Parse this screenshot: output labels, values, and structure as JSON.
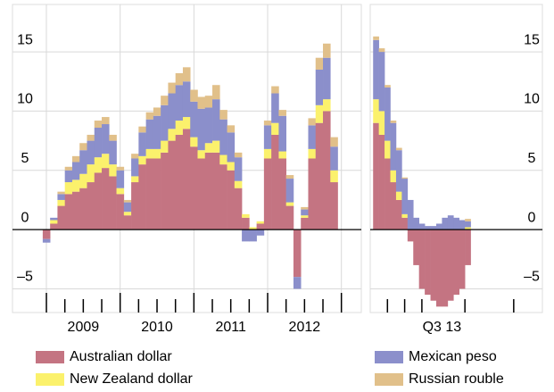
{
  "chart_data": [
    {
      "type": "bar",
      "stacked": true,
      "x": [
        2009.0,
        2009.1,
        2009.2,
        2009.3,
        2009.4,
        2009.5,
        2009.6,
        2009.7,
        2009.8,
        2009.9,
        2010.0,
        2010.1,
        2010.2,
        2010.3,
        2010.4,
        2010.5,
        2010.6,
        2010.7,
        2010.8,
        2010.9,
        2011.0,
        2011.1,
        2011.2,
        2011.3,
        2011.4,
        2011.5,
        2011.6,
        2011.7,
        2011.8,
        2011.9,
        2012.0,
        2012.1,
        2012.2,
        2012.3,
        2012.4,
        2012.5,
        2012.6,
        2012.7,
        2012.8,
        2012.9
      ],
      "series": [
        {
          "name": "Australian dollar",
          "color": "#c47482",
          "values": [
            -0.8,
            0.5,
            2,
            3,
            3.2,
            3.5,
            4,
            4.8,
            5.2,
            4.5,
            3,
            1.2,
            4,
            5.5,
            6,
            6,
            6.5,
            7.5,
            8,
            8.5,
            7,
            6,
            6.5,
            6.5,
            5.5,
            5,
            3.5,
            1,
            0,
            0.5,
            6,
            8,
            6,
            2,
            -4,
            1,
            6,
            9,
            10,
            4
          ]
        },
        {
          "name": "New Zealand dollar",
          "color": "#fbf16c",
          "values": [
            0,
            0.3,
            0.5,
            1,
            1,
            1.2,
            1.5,
            1.3,
            1.2,
            1,
            0.5,
            0.3,
            0.5,
            0.7,
            0.8,
            0.8,
            1,
            1,
            1.2,
            1,
            0.8,
            0.7,
            0.8,
            1,
            0.8,
            0.7,
            0.6,
            0.3,
            0.2,
            0.2,
            0.8,
            1,
            0.6,
            0.3,
            0,
            0.2,
            0.8,
            1.5,
            1,
            1
          ]
        },
        {
          "name": "Mexican peso",
          "color": "#8b8fcb",
          "values": [
            -0.3,
            0.2,
            0.5,
            1,
            1.5,
            2,
            2,
            2.5,
            2.5,
            2,
            1.5,
            0.8,
            1.5,
            2,
            2.5,
            2.8,
            3,
            3,
            3,
            3,
            3,
            3.5,
            3,
            3.5,
            3,
            2.5,
            2,
            -1,
            -1,
            -0.5,
            2,
            2.5,
            3,
            2,
            -1,
            0.5,
            2,
            3,
            3.5,
            2
          ]
        },
        {
          "name": "Russian rouble",
          "color": "#e1c08a",
          "values": [
            0,
            0,
            0.2,
            0.3,
            0.5,
            0.6,
            0.5,
            0.6,
            0.6,
            0.5,
            0.3,
            0.2,
            0.4,
            0.5,
            0.6,
            0.7,
            0.8,
            0.9,
            1,
            1.2,
            1,
            1,
            1,
            1.2,
            0.8,
            0.6,
            0.4,
            0,
            0,
            0,
            0.4,
            0.6,
            0.5,
            0.3,
            0,
            0.2,
            0.6,
            1,
            1.2,
            0.8
          ]
        }
      ],
      "xlim": [
        2008.54,
        2013.27
      ],
      "xticks": [
        {
          "value": 2009.5,
          "label": "2009"
        },
        {
          "value": 2010.5,
          "label": "2010"
        },
        {
          "value": 2011.5,
          "label": "2011"
        },
        {
          "value": 2012.5,
          "label": "2012"
        }
      ],
      "xticks_minor": [
        2009,
        2009.25,
        2009.5,
        2009.75,
        2010,
        2010.25,
        2010.5,
        2010.75,
        2011,
        2011.25,
        2011.5,
        2011.75,
        2012,
        2012.25,
        2012.5,
        2012.75,
        2013
      ],
      "ylim": [
        -7,
        19
      ],
      "yticks": [
        {
          "value": -5,
          "label": "–5"
        },
        0,
        5,
        10,
        15
      ],
      "grid": true
    },
    {
      "type": "bar",
      "stacked": true,
      "x": [
        2013.37,
        2013.39,
        2013.41,
        2013.43,
        2013.45,
        2013.47,
        2013.49,
        2013.51,
        2013.53,
        2013.55,
        2013.57,
        2013.59,
        2013.61,
        2013.63,
        2013.65,
        2013.67,
        2013.69
      ],
      "series": [
        {
          "color": "#c47482",
          "values": [
            9,
            8,
            6,
            4,
            2.5,
            1,
            -1,
            -3,
            -5,
            -5.5,
            -6,
            -6.5,
            -6.5,
            -6,
            -5.5,
            -5,
            -3
          ]
        },
        {
          "color": "#fbf16c",
          "values": [
            2,
            2,
            1.5,
            1,
            0.7,
            0.3,
            0,
            0,
            0,
            0,
            0,
            0,
            0,
            0,
            0,
            0,
            0.2
          ]
        },
        {
          "color": "#8b8fcb",
          "values": [
            5,
            5,
            4.5,
            4,
            3.5,
            3,
            2.5,
            1,
            0.5,
            0.3,
            0.3,
            0.5,
            1,
            1.2,
            1,
            0.8,
            0.5
          ]
        },
        {
          "color": "#e1c08a",
          "values": [
            0.3,
            0.3,
            0.2,
            0.2,
            0.2,
            0.1,
            0,
            0,
            0,
            0,
            0,
            0,
            0,
            0,
            0,
            0,
            0.2
          ]
        }
      ],
      "xlim": [
        2013.35,
        2013.95
      ],
      "xticks": [
        {
          "value": 2013.6,
          "label": "Q3 13"
        }
      ],
      "xticks_minor": [
        2013.41,
        2013.47,
        2013.53,
        2013.68,
        2013.85
      ],
      "ylim": [
        -7,
        19
      ],
      "yticks": [
        {
          "value": -5,
          "label": "–5"
        },
        0,
        5,
        10,
        15
      ],
      "grid": true
    }
  ]
}
